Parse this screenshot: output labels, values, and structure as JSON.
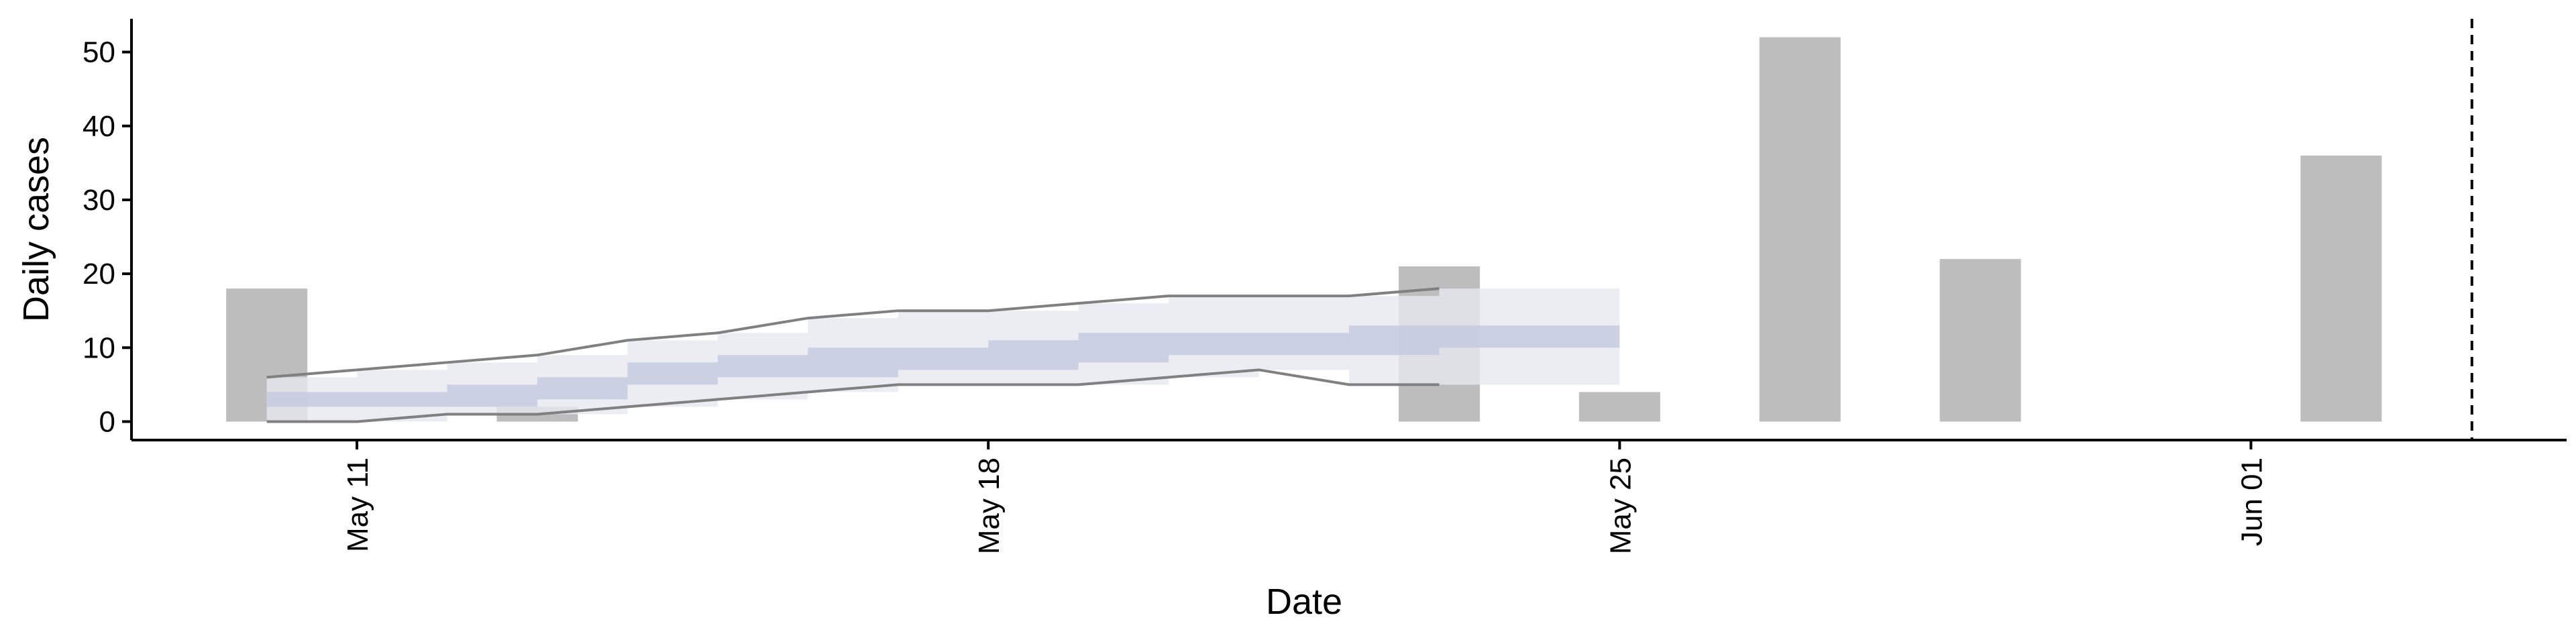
{
  "chart_data": {
    "type": "bar",
    "xlabel": "Date",
    "ylabel": "Daily cases",
    "ylim": [
      -2.5,
      54.5
    ],
    "xlim": [
      "2021-05-08 12:00",
      "2021-06-04 12:00"
    ],
    "yticks": [
      0,
      10,
      20,
      30,
      40,
      50
    ],
    "xticks": [
      {
        "date": "2021-05-11",
        "label": "May 11"
      },
      {
        "date": "2021-05-18",
        "label": "May 18"
      },
      {
        "date": "2021-05-25",
        "label": "May 25"
      },
      {
        "date": "2021-06-01",
        "label": "Jun 01"
      }
    ],
    "observed": [
      {
        "date": "2021-05-10",
        "value": 18
      },
      {
        "date": "2021-05-13",
        "value": 2
      },
      {
        "date": "2021-05-23",
        "value": 21
      },
      {
        "date": "2021-05-25",
        "value": 4
      },
      {
        "date": "2021-05-27",
        "value": 52
      },
      {
        "date": "2021-05-29",
        "value": 22
      },
      {
        "date": "2021-06-02",
        "value": 36
      }
    ],
    "forecast": {
      "dates": [
        "2021-05-10",
        "2021-05-11",
        "2021-05-12",
        "2021-05-13",
        "2021-05-14",
        "2021-05-15",
        "2021-05-16",
        "2021-05-17",
        "2021-05-18",
        "2021-05-19",
        "2021-05-20",
        "2021-05-21",
        "2021-05-22",
        "2021-05-23",
        "2021-05-24"
      ],
      "inner_low": [
        2,
        2,
        2,
        3,
        5,
        6,
        6,
        7,
        7,
        8,
        9,
        9,
        9,
        10,
        10
      ],
      "inner_high": [
        4,
        4,
        5,
        6,
        8,
        9,
        10,
        10,
        11,
        12,
        12,
        12,
        13,
        13,
        13
      ],
      "outer_low": [
        0,
        0,
        1,
        1,
        2,
        3,
        4,
        5,
        5,
        5,
        6,
        7,
        5,
        5,
        5
      ],
      "outer_high": [
        6,
        7,
        8,
        9,
        11,
        12,
        14,
        15,
        15,
        16,
        17,
        17,
        17,
        18,
        18
      ],
      "lower_line_end": "2021-05-23",
      "upper_line_end": "2021-05-23"
    },
    "vline_date": "2021-06-03",
    "colors": {
      "bar": "#bdbdbd",
      "band_outer": "#e6e9f0",
      "band_inner": "#c5cade",
      "bound_line": "#808080",
      "axis": "#000000"
    }
  }
}
